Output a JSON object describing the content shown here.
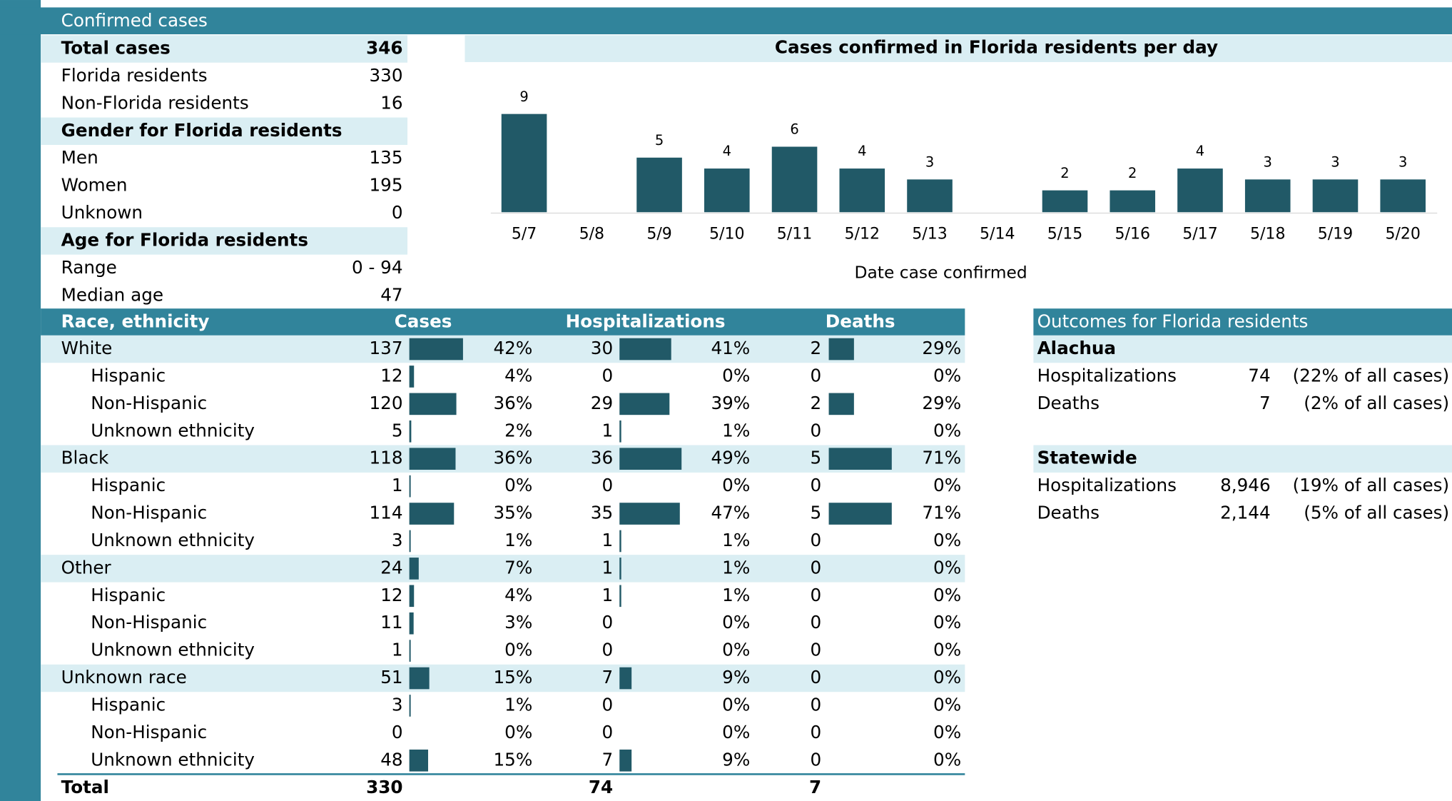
{
  "summary": {
    "header": "Confirmed cases",
    "rows": [
      {
        "label": "Total cases",
        "value": 346,
        "kind": "heading"
      },
      {
        "label": "Florida residents",
        "value": 330
      },
      {
        "label": "Non-Florida residents",
        "value": 16
      },
      {
        "label": "Gender for Florida residents",
        "kind": "heading"
      },
      {
        "label": "Men",
        "value": 135
      },
      {
        "label": "Women",
        "value": 195
      },
      {
        "label": "Unknown",
        "value": 0
      },
      {
        "label": "Age for Florida residents",
        "kind": "heading"
      },
      {
        "label": "Range",
        "value": "0 - 94"
      },
      {
        "label": "Median age",
        "value": 47
      }
    ]
  },
  "chart_data": {
    "type": "bar",
    "title": "Cases confirmed in Florida residents per day",
    "x_label": "Date case confirmed",
    "categories": [
      "5/7",
      "5/8",
      "5/9",
      "5/10",
      "5/11",
      "5/12",
      "5/13",
      "5/14",
      "5/15",
      "5/16",
      "5/17",
      "5/18",
      "5/19",
      "5/20"
    ],
    "values": [
      9,
      null,
      5,
      4,
      6,
      4,
      3,
      null,
      2,
      2,
      4,
      3,
      3,
      3
    ],
    "color": "#215967",
    "ylim": [
      0,
      9
    ]
  },
  "race_table": {
    "headers": [
      "Race, ethnicity",
      "Cases",
      "Hospitalizations",
      "Deaths"
    ],
    "groups": [
      {
        "name": "White",
        "cases": 137,
        "cases_pct": "42%",
        "hospitalizations": 30,
        "hospitalizations_pct": "41%",
        "deaths": 2,
        "deaths_pct": "29%",
        "subgroups": [
          {
            "name": "Hispanic",
            "cases": 12,
            "cases_pct": "4%",
            "hospitalizations": 0,
            "hospitalizations_pct": "0%",
            "deaths": 0,
            "deaths_pct": "0%"
          },
          {
            "name": "Non-Hispanic",
            "cases": 120,
            "cases_pct": "36%",
            "hospitalizations": 29,
            "hospitalizations_pct": "39%",
            "deaths": 2,
            "deaths_pct": "29%"
          },
          {
            "name": "Unknown ethnicity",
            "cases": 5,
            "cases_pct": "2%",
            "hospitalizations": 1,
            "hospitalizations_pct": "1%",
            "deaths": 0,
            "deaths_pct": "0%"
          }
        ]
      },
      {
        "name": "Black",
        "cases": 118,
        "cases_pct": "36%",
        "hospitalizations": 36,
        "hospitalizations_pct": "49%",
        "deaths": 5,
        "deaths_pct": "71%",
        "subgroups": [
          {
            "name": "Hispanic",
            "cases": 1,
            "cases_pct": "0%",
            "hospitalizations": 0,
            "hospitalizations_pct": "0%",
            "deaths": 0,
            "deaths_pct": "0%"
          },
          {
            "name": "Non-Hispanic",
            "cases": 114,
            "cases_pct": "35%",
            "hospitalizations": 35,
            "hospitalizations_pct": "47%",
            "deaths": 5,
            "deaths_pct": "71%"
          },
          {
            "name": "Unknown ethnicity",
            "cases": 3,
            "cases_pct": "1%",
            "hospitalizations": 1,
            "hospitalizations_pct": "1%",
            "deaths": 0,
            "deaths_pct": "0%"
          }
        ]
      },
      {
        "name": "Other",
        "cases": 24,
        "cases_pct": "7%",
        "hospitalizations": 1,
        "hospitalizations_pct": "1%",
        "deaths": 0,
        "deaths_pct": "0%",
        "subgroups": [
          {
            "name": "Hispanic",
            "cases": 12,
            "cases_pct": "4%",
            "hospitalizations": 1,
            "hospitalizations_pct": "1%",
            "deaths": 0,
            "deaths_pct": "0%"
          },
          {
            "name": "Non-Hispanic",
            "cases": 11,
            "cases_pct": "3%",
            "hospitalizations": 0,
            "hospitalizations_pct": "0%",
            "deaths": 0,
            "deaths_pct": "0%"
          },
          {
            "name": "Unknown ethnicity",
            "cases": 1,
            "cases_pct": "0%",
            "hospitalizations": 0,
            "hospitalizations_pct": "0%",
            "deaths": 0,
            "deaths_pct": "0%"
          }
        ]
      },
      {
        "name": "Unknown race",
        "cases": 51,
        "cases_pct": "15%",
        "hospitalizations": 7,
        "hospitalizations_pct": "9%",
        "deaths": 0,
        "deaths_pct": "0%",
        "subgroups": [
          {
            "name": "Hispanic",
            "cases": 3,
            "cases_pct": "1%",
            "hospitalizations": 0,
            "hospitalizations_pct": "0%",
            "deaths": 0,
            "deaths_pct": "0%"
          },
          {
            "name": "Non-Hispanic",
            "cases": 0,
            "cases_pct": "0%",
            "hospitalizations": 0,
            "hospitalizations_pct": "0%",
            "deaths": 0,
            "deaths_pct": "0%"
          },
          {
            "name": "Unknown ethnicity",
            "cases": 48,
            "cases_pct": "15%",
            "hospitalizations": 7,
            "hospitalizations_pct": "9%",
            "deaths": 0,
            "deaths_pct": "0%"
          }
        ]
      }
    ],
    "total": {
      "label": "Total",
      "cases": 330,
      "hospitalizations": 74,
      "deaths": 7
    }
  },
  "outcomes": {
    "header": "Outcomes for Florida residents",
    "sections": [
      {
        "name": "Alachua",
        "rows": [
          {
            "label": "Hospitalizations",
            "value": "74",
            "share": "(22% of all cases)"
          },
          {
            "label": "Deaths",
            "value": "7",
            "share": "(2% of all cases)"
          }
        ]
      },
      {
        "name": "Statewide",
        "rows": [
          {
            "label": "Hospitalizations",
            "value": "8,946",
            "share": "(19% of all cases)"
          },
          {
            "label": "Deaths",
            "value": "2,144",
            "share": "(5% of all cases)"
          }
        ]
      }
    ]
  }
}
